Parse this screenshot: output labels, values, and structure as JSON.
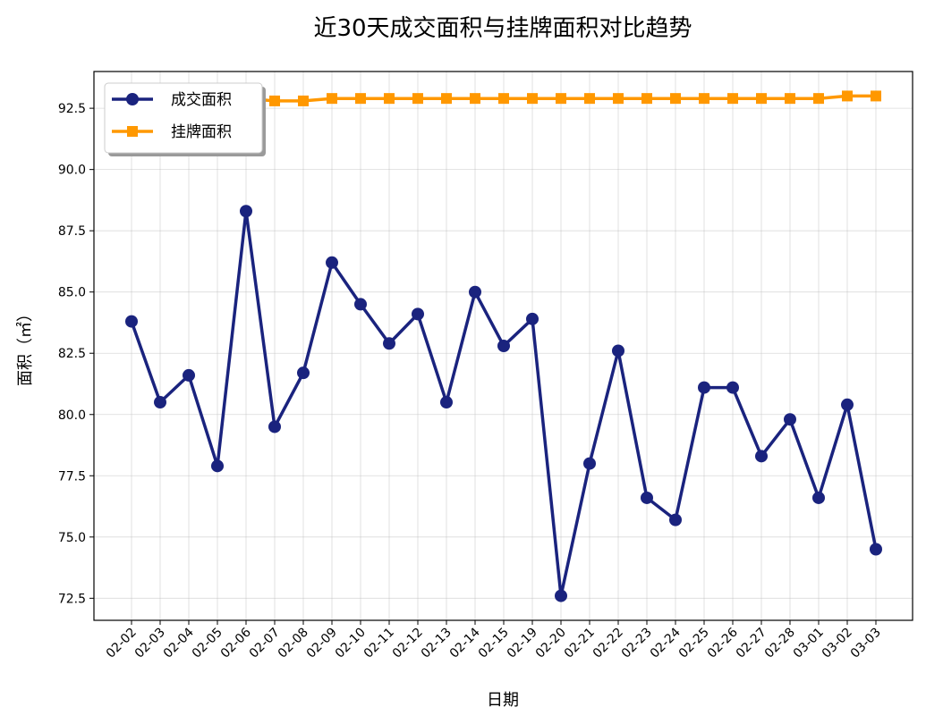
{
  "chart_data": {
    "type": "line",
    "title": "近30天成交面积与挂牌面积对比趋势",
    "xlabel": "日期",
    "ylabel": "面积（㎡）",
    "categories": [
      "02-02",
      "02-03",
      "02-04",
      "02-05",
      "02-06",
      "02-07",
      "02-08",
      "02-09",
      "02-10",
      "02-11",
      "02-12",
      "02-13",
      "02-14",
      "02-15",
      "02-19",
      "02-20",
      "02-21",
      "02-22",
      "02-23",
      "02-24",
      "02-25",
      "02-26",
      "02-27",
      "02-28",
      "03-01",
      "03-02",
      "03-03"
    ],
    "series": [
      {
        "name": "成交面积",
        "color": "#1a237e",
        "marker": "circle",
        "values": [
          83.8,
          80.5,
          81.6,
          77.9,
          88.3,
          79.5,
          81.7,
          86.2,
          84.5,
          82.9,
          84.1,
          80.5,
          85.0,
          82.8,
          83.9,
          72.6,
          78.0,
          82.6,
          76.6,
          75.7,
          81.1,
          81.1,
          78.3,
          79.8,
          76.6,
          80.4,
          74.5
        ]
      },
      {
        "name": "挂牌面积",
        "color": "#ff9800",
        "marker": "square",
        "values": [
          null,
          null,
          null,
          null,
          92.9,
          92.8,
          92.8,
          92.9,
          92.9,
          92.9,
          92.9,
          92.9,
          92.9,
          92.9,
          92.9,
          92.9,
          92.9,
          92.9,
          92.9,
          92.9,
          92.9,
          92.9,
          92.9,
          92.9,
          92.9,
          93.0,
          93.0
        ]
      }
    ],
    "yticks": [
      "72.5",
      "75.0",
      "77.5",
      "80.0",
      "82.5",
      "85.0",
      "87.5",
      "90.0",
      "92.5"
    ],
    "ylim": [
      71.6,
      94.0
    ],
    "grid": true,
    "legend_position": "top-left"
  }
}
